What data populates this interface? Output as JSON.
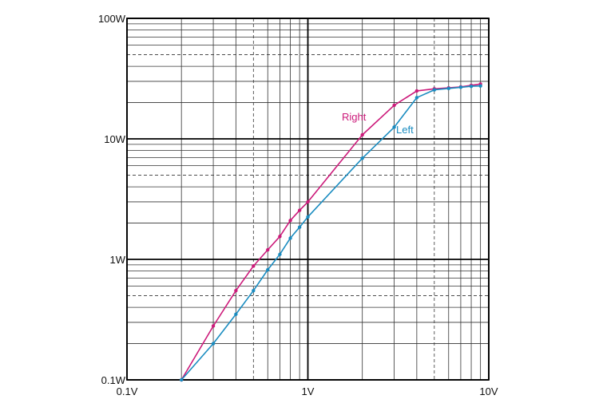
{
  "chart_data": {
    "type": "line",
    "title": "",
    "xlabel": "",
    "ylabel": "",
    "x_scale": "log",
    "y_scale": "log",
    "xlim": [
      0.1,
      10
    ],
    "ylim": [
      0.1,
      100
    ],
    "grid": true,
    "legend": "inline labels",
    "x_ticks": [
      {
        "value": 0.1,
        "label": "0.1V"
      },
      {
        "value": 1,
        "label": "1V"
      },
      {
        "value": 10,
        "label": "10V"
      }
    ],
    "y_ticks": [
      {
        "value": 0.1,
        "label": "0.1W"
      },
      {
        "value": 1,
        "label": "1W"
      },
      {
        "value": 10,
        "label": "10W"
      },
      {
        "value": 100,
        "label": "100W"
      }
    ],
    "series": [
      {
        "name": "Right",
        "color": "#cc1a7a",
        "points": [
          [
            0.2,
            0.1
          ],
          [
            0.3,
            0.28
          ],
          [
            0.4,
            0.55
          ],
          [
            0.5,
            0.88
          ],
          [
            0.6,
            1.2
          ],
          [
            0.7,
            1.55
          ],
          [
            0.8,
            2.1
          ],
          [
            0.9,
            2.55
          ],
          [
            1.0,
            3.0
          ],
          [
            2.0,
            10.8
          ],
          [
            3.0,
            19.0
          ],
          [
            4.0,
            25.0
          ],
          [
            5.0,
            26.0
          ],
          [
            6.0,
            26.5
          ],
          [
            7.0,
            27.0
          ],
          [
            8.0,
            27.8
          ],
          [
            9.0,
            28.5
          ]
        ]
      },
      {
        "name": "Left",
        "color": "#1a8cc0",
        "points": [
          [
            0.2,
            0.1
          ],
          [
            0.3,
            0.2
          ],
          [
            0.4,
            0.35
          ],
          [
            0.5,
            0.55
          ],
          [
            0.6,
            0.82
          ],
          [
            0.7,
            1.1
          ],
          [
            0.8,
            1.5
          ],
          [
            0.9,
            1.85
          ],
          [
            1.0,
            2.25
          ],
          [
            2.0,
            6.9
          ],
          [
            3.0,
            12.5
          ],
          [
            4.0,
            22.0
          ],
          [
            5.0,
            25.5
          ],
          [
            6.0,
            26.2
          ],
          [
            7.0,
            26.8
          ],
          [
            8.0,
            27.3
          ],
          [
            9.0,
            27.5
          ]
        ]
      }
    ]
  }
}
